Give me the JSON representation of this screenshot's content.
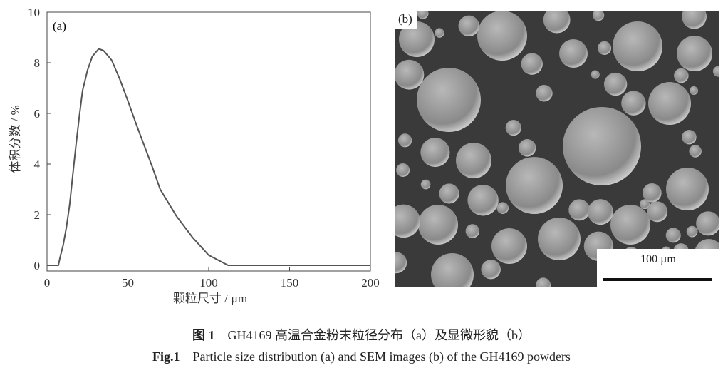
{
  "chart_data": {
    "type": "line",
    "panel_label": "(a)",
    "xlabel": "颗粒尺寸 / µm",
    "ylabel": "体积分数 / %",
    "xlim": [
      0,
      200
    ],
    "ylim": [
      0,
      10
    ],
    "xticks": [
      0,
      50,
      100,
      150,
      200
    ],
    "yticks": [
      0,
      2,
      4,
      6,
      8,
      10
    ],
    "grid": false,
    "line_color": "#555555",
    "x": [
      0,
      7,
      8,
      10,
      12,
      14,
      16,
      18,
      20,
      22,
      25,
      28,
      32,
      35,
      40,
      45,
      50,
      55,
      60,
      65,
      70,
      80,
      90,
      100,
      112,
      200
    ],
    "y": [
      0,
      0,
      0.3,
      0.8,
      1.5,
      2.4,
      3.6,
      4.8,
      5.9,
      6.9,
      7.7,
      8.25,
      8.55,
      8.48,
      8.1,
      7.35,
      6.5,
      5.6,
      4.75,
      3.9,
      3.0,
      1.95,
      1.1,
      0.4,
      0,
      0
    ]
  },
  "sem": {
    "panel_label": "(b)",
    "scale_bar_label": "100 µm"
  },
  "caption": {
    "cn_label": "图 1",
    "cn_text": "GH4169 高温合金粉末粒径分布（a）及显微形貌（b）",
    "en_label": "Fig.1",
    "en_text": "Particle size distribution (a) and SEM images (b) of the GH4169 powders"
  }
}
